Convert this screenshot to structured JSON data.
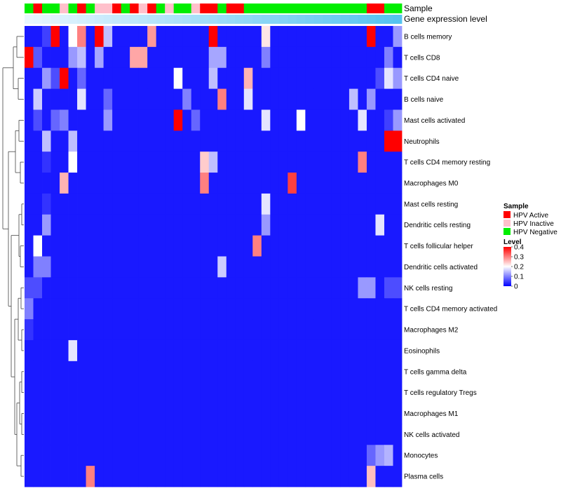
{
  "chart_data": {
    "type": "heatmap",
    "title": "",
    "annotation_labels": {
      "sample": "Sample",
      "expression": "Gene expression level"
    },
    "sample_legend": {
      "title": "Sample",
      "entries": [
        {
          "label": "HPV Active",
          "color": "#ff0000"
        },
        {
          "label": "HPV Inactive",
          "color": "#ffc0cb"
        },
        {
          "label": "HPV Negative",
          "color": "#00ee00"
        }
      ]
    },
    "level_legend": {
      "title": "Level",
      "range": [
        0,
        0.4
      ],
      "ticks": [
        "0.4",
        "0.3",
        "0.2",
        "0.1",
        "0"
      ],
      "tick_values": [
        0.4,
        0.3,
        0.2,
        0.1,
        0
      ],
      "colors": [
        "#0000ff",
        "#ffffff",
        "#ff0000"
      ]
    },
    "column_samples": [
      "N",
      "A",
      "N",
      "N",
      "I",
      "N",
      "A",
      "N",
      "I",
      "I",
      "A",
      "N",
      "A",
      "I",
      "A",
      "N",
      "I",
      "N",
      "N",
      "I",
      "A",
      "A",
      "N",
      "A",
      "A",
      "N",
      "N",
      "N",
      "N",
      "N",
      "N",
      "N",
      "N",
      "N",
      "N",
      "N",
      "N",
      "N",
      "N",
      "A",
      "A",
      "N",
      "N"
    ],
    "rows": [
      "B cells memory",
      "T cells CD8",
      "T cells CD4 naive",
      "B cells naive",
      "Mast cells activated",
      "Neutrophils",
      "T cells CD4 memory resting",
      "Macrophages M0",
      "Mast cells resting",
      "Dendritic cells resting",
      "T cells follicular helper",
      "Dendritic cells activated",
      "NK cells resting",
      "T cells CD4 memory activated",
      "Macrophages M2",
      "Eosinophils",
      "T cells gamma delta",
      "T cells regulatory  Tregs",
      "Macrophages M1",
      "NK cells activated",
      "Monocytes",
      "Plasma cells"
    ],
    "values": [
      [
        0.02,
        0.02,
        0.05,
        0.4,
        0.02,
        0.2,
        0.3,
        0.02,
        0.4,
        0.15,
        0.02,
        0.02,
        0.02,
        0.02,
        0.28,
        0.02,
        0.02,
        0.02,
        0.02,
        0.02,
        0.02,
        0.4,
        0.02,
        0.02,
        0.02,
        0.02,
        0.02,
        0.22,
        0.02,
        0.02,
        0.02,
        0.02,
        0.02,
        0.02,
        0.02,
        0.02,
        0.02,
        0.02,
        0.02,
        0.4,
        0.02,
        0.02,
        0.12
      ],
      [
        0.4,
        0.07,
        0.02,
        0.02,
        0.02,
        0.12,
        0.15,
        0.02,
        0.13,
        0.02,
        0.02,
        0.02,
        0.27,
        0.27,
        0.02,
        0.02,
        0.02,
        0.02,
        0.02,
        0.02,
        0.02,
        0.13,
        0.13,
        0.02,
        0.02,
        0.02,
        0.02,
        0.1,
        0.02,
        0.02,
        0.02,
        0.02,
        0.02,
        0.02,
        0.02,
        0.02,
        0.02,
        0.02,
        0.02,
        0.02,
        0.02,
        0.1,
        0.02
      ],
      [
        0.02,
        0.02,
        0.12,
        0.06,
        0.4,
        0.02,
        0.08,
        0.02,
        0.02,
        0.02,
        0.02,
        0.02,
        0.02,
        0.02,
        0.02,
        0.02,
        0.02,
        0.2,
        0.02,
        0.02,
        0.02,
        0.15,
        0.02,
        0.02,
        0.02,
        0.26,
        0.02,
        0.02,
        0.02,
        0.02,
        0.02,
        0.02,
        0.02,
        0.02,
        0.02,
        0.02,
        0.02,
        0.02,
        0.02,
        0.02,
        0.06,
        0.18,
        0.12
      ],
      [
        0.02,
        0.16,
        0.02,
        0.02,
        0.02,
        0.02,
        0.18,
        0.02,
        0.02,
        0.08,
        0.02,
        0.02,
        0.02,
        0.02,
        0.02,
        0.02,
        0.02,
        0.02,
        0.1,
        0.02,
        0.02,
        0.02,
        0.3,
        0.02,
        0.02,
        0.18,
        0.02,
        0.02,
        0.02,
        0.02,
        0.02,
        0.02,
        0.02,
        0.02,
        0.02,
        0.02,
        0.02,
        0.15,
        0.02,
        0.12,
        0.02,
        0.02,
        0.02
      ],
      [
        0.02,
        0.06,
        0.02,
        0.08,
        0.1,
        0.02,
        0.02,
        0.02,
        0.02,
        0.12,
        0.02,
        0.02,
        0.02,
        0.02,
        0.02,
        0.02,
        0.02,
        0.4,
        0.02,
        0.08,
        0.02,
        0.02,
        0.02,
        0.02,
        0.02,
        0.02,
        0.02,
        0.18,
        0.02,
        0.02,
        0.02,
        0.2,
        0.02,
        0.02,
        0.02,
        0.02,
        0.02,
        0.02,
        0.18,
        0.02,
        0.02,
        0.05,
        0.12
      ],
      [
        0.02,
        0.02,
        0.15,
        0.02,
        0.02,
        0.15,
        0.02,
        0.02,
        0.02,
        0.02,
        0.02,
        0.02,
        0.02,
        0.02,
        0.02,
        0.02,
        0.02,
        0.02,
        0.02,
        0.02,
        0.02,
        0.02,
        0.02,
        0.02,
        0.02,
        0.02,
        0.02,
        0.02,
        0.02,
        0.02,
        0.02,
        0.02,
        0.02,
        0.02,
        0.02,
        0.02,
        0.02,
        0.02,
        0.02,
        0.02,
        0.02,
        0.4,
        0.4
      ],
      [
        0.02,
        0.02,
        0.04,
        0.02,
        0.02,
        0.2,
        0.02,
        0.02,
        0.02,
        0.02,
        0.02,
        0.02,
        0.02,
        0.02,
        0.02,
        0.02,
        0.02,
        0.02,
        0.02,
        0.02,
        0.24,
        0.15,
        0.02,
        0.02,
        0.02,
        0.02,
        0.02,
        0.02,
        0.02,
        0.02,
        0.02,
        0.02,
        0.02,
        0.02,
        0.02,
        0.02,
        0.02,
        0.02,
        0.3,
        0.02,
        0.02,
        0.02,
        0.02
      ],
      [
        0.02,
        0.02,
        0.02,
        0.02,
        0.26,
        0.02,
        0.02,
        0.02,
        0.02,
        0.02,
        0.02,
        0.02,
        0.02,
        0.02,
        0.02,
        0.02,
        0.02,
        0.02,
        0.02,
        0.02,
        0.3,
        0.02,
        0.02,
        0.02,
        0.02,
        0.02,
        0.02,
        0.02,
        0.02,
        0.02,
        0.35,
        0.02,
        0.02,
        0.02,
        0.02,
        0.02,
        0.02,
        0.02,
        0.02,
        0.02,
        0.02,
        0.02,
        0.02
      ],
      [
        0.02,
        0.02,
        0.04,
        0.02,
        0.02,
        0.02,
        0.02,
        0.02,
        0.02,
        0.02,
        0.02,
        0.02,
        0.02,
        0.02,
        0.02,
        0.02,
        0.02,
        0.02,
        0.02,
        0.02,
        0.02,
        0.02,
        0.02,
        0.02,
        0.02,
        0.02,
        0.02,
        0.18,
        0.02,
        0.02,
        0.02,
        0.02,
        0.02,
        0.02,
        0.02,
        0.02,
        0.02,
        0.02,
        0.02,
        0.02,
        0.02,
        0.02,
        0.02
      ],
      [
        0.02,
        0.02,
        0.12,
        0.02,
        0.02,
        0.02,
        0.02,
        0.02,
        0.02,
        0.02,
        0.02,
        0.02,
        0.02,
        0.02,
        0.02,
        0.02,
        0.02,
        0.02,
        0.02,
        0.02,
        0.02,
        0.02,
        0.02,
        0.02,
        0.02,
        0.02,
        0.02,
        0.12,
        0.02,
        0.02,
        0.02,
        0.02,
        0.02,
        0.02,
        0.02,
        0.02,
        0.02,
        0.02,
        0.02,
        0.02,
        0.18,
        0.02,
        0.02
      ],
      [
        0.02,
        0.2,
        0.02,
        0.02,
        0.02,
        0.02,
        0.02,
        0.02,
        0.02,
        0.02,
        0.02,
        0.02,
        0.02,
        0.02,
        0.02,
        0.02,
        0.02,
        0.02,
        0.02,
        0.02,
        0.02,
        0.02,
        0.02,
        0.02,
        0.02,
        0.02,
        0.3,
        0.02,
        0.02,
        0.02,
        0.02,
        0.02,
        0.02,
        0.02,
        0.02,
        0.02,
        0.02,
        0.02,
        0.02,
        0.02,
        0.02,
        0.02,
        0.02
      ],
      [
        0.02,
        0.1,
        0.1,
        0.02,
        0.02,
        0.02,
        0.02,
        0.02,
        0.02,
        0.02,
        0.02,
        0.02,
        0.02,
        0.02,
        0.02,
        0.02,
        0.02,
        0.02,
        0.02,
        0.02,
        0.02,
        0.02,
        0.16,
        0.02,
        0.02,
        0.02,
        0.02,
        0.02,
        0.02,
        0.02,
        0.02,
        0.02,
        0.02,
        0.02,
        0.02,
        0.02,
        0.02,
        0.02,
        0.02,
        0.02,
        0.02,
        0.02,
        0.02
      ],
      [
        0.06,
        0.06,
        0.02,
        0.02,
        0.02,
        0.02,
        0.02,
        0.02,
        0.02,
        0.02,
        0.02,
        0.02,
        0.02,
        0.02,
        0.02,
        0.02,
        0.02,
        0.02,
        0.02,
        0.02,
        0.02,
        0.02,
        0.02,
        0.02,
        0.02,
        0.02,
        0.02,
        0.02,
        0.02,
        0.02,
        0.02,
        0.02,
        0.02,
        0.02,
        0.02,
        0.02,
        0.02,
        0.02,
        0.12,
        0.12,
        0.02,
        0.06,
        0.06
      ],
      [
        0.1,
        0.02,
        0.02,
        0.02,
        0.02,
        0.02,
        0.02,
        0.02,
        0.02,
        0.02,
        0.02,
        0.02,
        0.02,
        0.02,
        0.02,
        0.02,
        0.02,
        0.02,
        0.02,
        0.02,
        0.02,
        0.02,
        0.02,
        0.02,
        0.02,
        0.02,
        0.02,
        0.02,
        0.02,
        0.02,
        0.02,
        0.02,
        0.02,
        0.02,
        0.02,
        0.02,
        0.02,
        0.02,
        0.02,
        0.02,
        0.02,
        0.02,
        0.02
      ],
      [
        0.04,
        0.02,
        0.02,
        0.02,
        0.02,
        0.02,
        0.02,
        0.02,
        0.02,
        0.02,
        0.02,
        0.02,
        0.02,
        0.02,
        0.02,
        0.02,
        0.02,
        0.02,
        0.02,
        0.02,
        0.02,
        0.02,
        0.02,
        0.02,
        0.02,
        0.02,
        0.02,
        0.02,
        0.02,
        0.02,
        0.02,
        0.02,
        0.02,
        0.02,
        0.02,
        0.02,
        0.02,
        0.02,
        0.02,
        0.02,
        0.02,
        0.02,
        0.02
      ],
      [
        0.02,
        0.02,
        0.02,
        0.02,
        0.02,
        0.18,
        0.02,
        0.02,
        0.02,
        0.02,
        0.02,
        0.02,
        0.02,
        0.02,
        0.02,
        0.02,
        0.02,
        0.02,
        0.02,
        0.02,
        0.02,
        0.02,
        0.02,
        0.02,
        0.02,
        0.02,
        0.02,
        0.02,
        0.02,
        0.02,
        0.02,
        0.02,
        0.02,
        0.02,
        0.02,
        0.02,
        0.02,
        0.02,
        0.02,
        0.02,
        0.02,
        0.02,
        0.02
      ],
      [
        0.02,
        0.02,
        0.02,
        0.02,
        0.02,
        0.02,
        0.02,
        0.02,
        0.02,
        0.02,
        0.02,
        0.02,
        0.02,
        0.02,
        0.02,
        0.02,
        0.02,
        0.02,
        0.02,
        0.02,
        0.02,
        0.02,
        0.02,
        0.02,
        0.02,
        0.02,
        0.02,
        0.02,
        0.02,
        0.02,
        0.02,
        0.02,
        0.02,
        0.02,
        0.02,
        0.02,
        0.02,
        0.02,
        0.02,
        0.02,
        0.02,
        0.02,
        0.02
      ],
      [
        0.02,
        0.02,
        0.02,
        0.02,
        0.02,
        0.02,
        0.02,
        0.02,
        0.02,
        0.02,
        0.02,
        0.02,
        0.02,
        0.02,
        0.02,
        0.02,
        0.02,
        0.02,
        0.02,
        0.02,
        0.02,
        0.02,
        0.02,
        0.02,
        0.02,
        0.02,
        0.02,
        0.02,
        0.02,
        0.02,
        0.02,
        0.02,
        0.02,
        0.02,
        0.02,
        0.02,
        0.02,
        0.02,
        0.02,
        0.02,
        0.02,
        0.02,
        0.02
      ],
      [
        0.02,
        0.02,
        0.02,
        0.02,
        0.02,
        0.02,
        0.02,
        0.02,
        0.02,
        0.02,
        0.02,
        0.02,
        0.02,
        0.02,
        0.02,
        0.02,
        0.02,
        0.02,
        0.02,
        0.02,
        0.02,
        0.02,
        0.02,
        0.02,
        0.02,
        0.02,
        0.02,
        0.02,
        0.02,
        0.02,
        0.02,
        0.02,
        0.02,
        0.02,
        0.02,
        0.02,
        0.02,
        0.02,
        0.02,
        0.02,
        0.02,
        0.02,
        0.02
      ],
      [
        0.02,
        0.02,
        0.02,
        0.02,
        0.02,
        0.02,
        0.02,
        0.02,
        0.02,
        0.02,
        0.02,
        0.02,
        0.02,
        0.02,
        0.02,
        0.02,
        0.02,
        0.02,
        0.02,
        0.02,
        0.02,
        0.02,
        0.02,
        0.02,
        0.02,
        0.02,
        0.02,
        0.02,
        0.02,
        0.02,
        0.02,
        0.02,
        0.02,
        0.02,
        0.02,
        0.02,
        0.02,
        0.02,
        0.02,
        0.02,
        0.02,
        0.02,
        0.02
      ],
      [
        0.02,
        0.02,
        0.02,
        0.02,
        0.02,
        0.02,
        0.02,
        0.02,
        0.02,
        0.02,
        0.02,
        0.02,
        0.02,
        0.02,
        0.02,
        0.02,
        0.02,
        0.02,
        0.02,
        0.02,
        0.02,
        0.02,
        0.02,
        0.02,
        0.02,
        0.02,
        0.02,
        0.02,
        0.02,
        0.02,
        0.02,
        0.02,
        0.02,
        0.02,
        0.02,
        0.02,
        0.02,
        0.02,
        0.02,
        0.08,
        0.12,
        0.14,
        0.02
      ],
      [
        0.02,
        0.02,
        0.02,
        0.02,
        0.02,
        0.02,
        0.02,
        0.3,
        0.02,
        0.02,
        0.02,
        0.02,
        0.02,
        0.02,
        0.02,
        0.02,
        0.02,
        0.02,
        0.02,
        0.02,
        0.02,
        0.02,
        0.02,
        0.02,
        0.02,
        0.02,
        0.02,
        0.02,
        0.02,
        0.02,
        0.02,
        0.02,
        0.02,
        0.02,
        0.02,
        0.02,
        0.02,
        0.02,
        0.02,
        0.25,
        0.02,
        0.02,
        0.02
      ]
    ]
  }
}
